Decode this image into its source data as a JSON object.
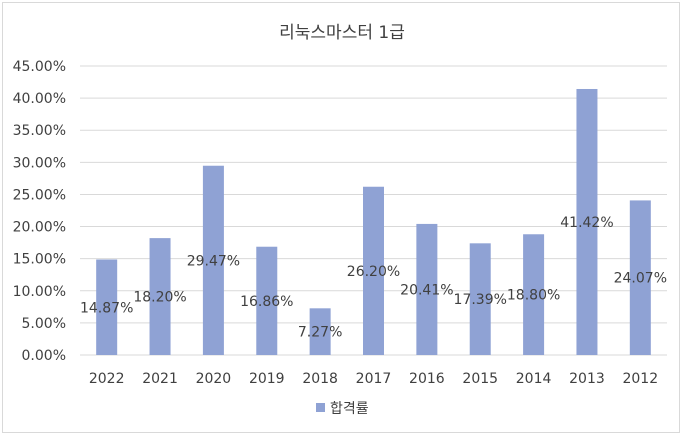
{
  "chart_data": {
    "type": "bar",
    "title": "리눅스마스터 1급",
    "categories": [
      "2022",
      "2021",
      "2020",
      "2019",
      "2018",
      "2017",
      "2016",
      "2015",
      "2014",
      "2013",
      "2012"
    ],
    "series": [
      {
        "name": "합격률",
        "values": [
          14.87,
          18.2,
          29.47,
          16.86,
          7.27,
          26.2,
          20.41,
          17.39,
          18.8,
          41.42,
          24.07
        ],
        "labels": [
          "14.87%",
          "18.20%",
          "29.47%",
          "16.86%",
          "7.27%",
          "26.20%",
          "20.41%",
          "17.39%",
          "18.80%",
          "41.42%",
          "24.07%"
        ],
        "color": "#8fa2d4"
      }
    ],
    "ylim": [
      0,
      45
    ],
    "yticks": [
      0,
      5,
      10,
      15,
      20,
      25,
      30,
      35,
      40,
      45
    ],
    "ytick_labels": [
      "0.00%",
      "5.00%",
      "10.00%",
      "15.00%",
      "20.00%",
      "25.00%",
      "30.00%",
      "35.00%",
      "40.00%",
      "45.00%"
    ],
    "grid": true,
    "legend_position": "bottom",
    "gridline_color": "#d9d9d9"
  }
}
